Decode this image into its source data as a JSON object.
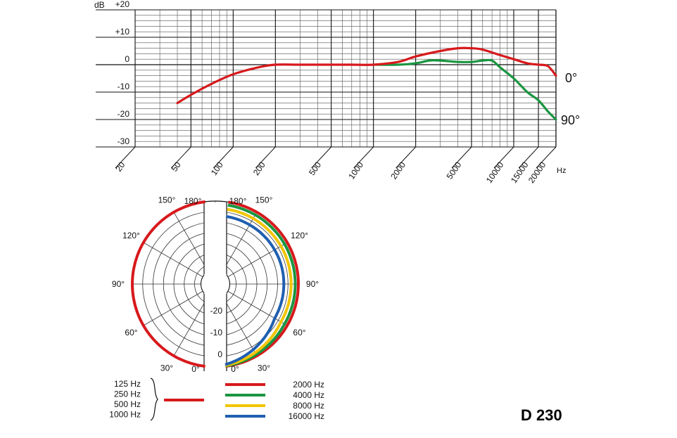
{
  "chart_data": [
    {
      "type": "line",
      "y_axis": {
        "unit": "dB",
        "ticks": [
          {
            "value": 20,
            "label": "+20"
          },
          {
            "value": 10,
            "label": "+10"
          },
          {
            "value": 0,
            "label": "0"
          },
          {
            "value": -10,
            "label": "-10"
          },
          {
            "value": -20,
            "label": "-20"
          },
          {
            "value": -30,
            "label": "-30"
          }
        ],
        "ylim": [
          -30,
          20
        ]
      },
      "x_axis": {
        "scale": "log",
        "unit": "Hz",
        "xlim": [
          20,
          20000
        ],
        "tick_labels": [
          "20",
          "50",
          "100",
          "200",
          "500",
          "1000",
          "2000",
          "5000",
          "10000",
          "15000",
          "20000"
        ]
      },
      "grid": true,
      "series": [
        {
          "name": "0°",
          "color": "#d7191c",
          "points": [
            [
              40,
              -14
            ],
            [
              50,
              -11
            ],
            [
              70,
              -7
            ],
            [
              100,
              -3.5
            ],
            [
              150,
              -1
            ],
            [
              200,
              0
            ],
            [
              300,
              0
            ],
            [
              500,
              0
            ],
            [
              700,
              0
            ],
            [
              1000,
              0
            ],
            [
              1500,
              1
            ],
            [
              2000,
              3
            ],
            [
              3000,
              5
            ],
            [
              4000,
              6
            ],
            [
              5000,
              6
            ],
            [
              6000,
              5.5
            ],
            [
              8000,
              3.5
            ],
            [
              10000,
              2
            ],
            [
              12500,
              0.5
            ],
            [
              15000,
              0
            ],
            [
              17500,
              -0.5
            ],
            [
              20000,
              -4
            ]
          ]
        },
        {
          "name": "90°",
          "color": "#1a9641",
          "points": [
            [
              1000,
              0
            ],
            [
              1500,
              0
            ],
            [
              2000,
              0.5
            ],
            [
              2500,
              1.5
            ],
            [
              3000,
              1.5
            ],
            [
              4000,
              1
            ],
            [
              5000,
              1
            ],
            [
              6000,
              1.5
            ],
            [
              7000,
              1.5
            ],
            [
              8000,
              -1
            ],
            [
              10000,
              -5
            ],
            [
              12500,
              -10
            ],
            [
              15000,
              -13
            ],
            [
              17500,
              -17
            ],
            [
              20000,
              -20
            ]
          ]
        }
      ]
    },
    {
      "type": "polar",
      "radial_ticks": [
        "-20",
        "-10",
        "0"
      ],
      "angle_labels_left": [
        "180°",
        "150°",
        "120°",
        "90°",
        "60°",
        "30°",
        "0°"
      ],
      "angle_labels_right": [
        "180°",
        "150°",
        "120°",
        "90°",
        "60°",
        "30°",
        "0°"
      ],
      "left_series": [
        {
          "frequencies": [
            "125 Hz",
            "250 Hz",
            "500 Hz",
            "1000 Hz"
          ],
          "color": "#d7191c",
          "level_db": 0
        }
      ],
      "right_series": [
        {
          "name": "2000 Hz",
          "color": "#d7191c",
          "level_db": 0
        },
        {
          "name": "4000 Hz",
          "color": "#1a9641",
          "level_db": -1.5
        },
        {
          "name": "8000 Hz",
          "color": "#f2c500",
          "level_db": -3.5
        },
        {
          "name": "16000 Hz",
          "color": "#1f5fb0",
          "level_db": -7
        }
      ]
    }
  ],
  "model_name": "D 230"
}
